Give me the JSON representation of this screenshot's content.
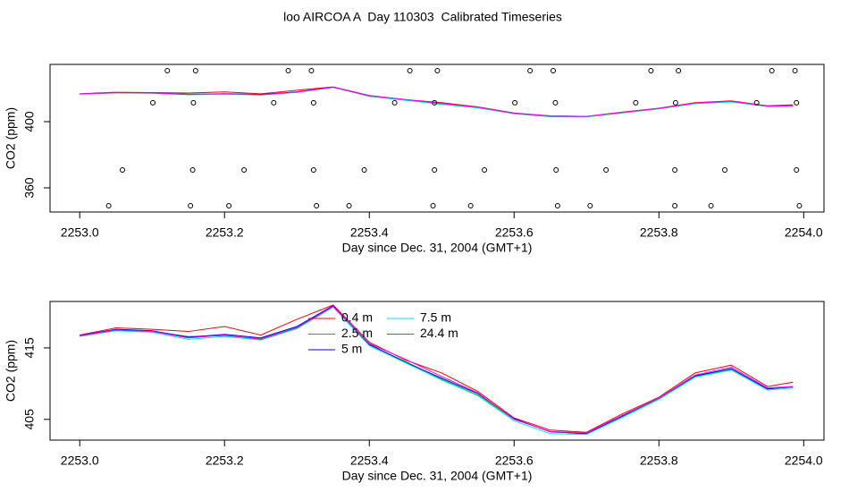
{
  "title": "loo AIRCOA A  Day 110303  Calibrated Timeseries",
  "chart_data": [
    {
      "type": "line",
      "xlabel": "Day since Dec. 31, 2004 (GMT+1)",
      "ylabel": "CO2 (ppm)",
      "xlim": [
        2252.959,
        2254.028
      ],
      "ylim": [
        345.4,
        434.6
      ],
      "xticks": [
        {
          "value": 2253,
          "label": "2253.0"
        },
        2253.2,
        2253.4,
        2253.6,
        2253.8,
        {
          "value": 2254,
          "label": "2254.0"
        }
      ],
      "yticks": [
        360,
        400
      ],
      "legend": false,
      "x": [
        2253,
        2253.05,
        2253.1,
        2253.15,
        2253.2,
        2253.25,
        2253.3,
        2253.35,
        2253.4,
        2253.45,
        2253.5,
        2253.55,
        2253.6,
        2253.65,
        2253.7,
        2253.75,
        2253.8,
        2253.85,
        2253.9,
        2253.95,
        2253.985
      ],
      "series": [
        {
          "name": "0.4 m",
          "color": "#ff0000",
          "values": [
            416.8,
            417.8,
            417.6,
            417.3,
            418.0,
            416.8,
            419.0,
            421.0,
            415.8,
            413.3,
            411.5,
            408.9,
            405.2,
            403.5,
            403.2,
            405.8,
            408.1,
            411.5,
            412.6,
            409.6,
            410.2
          ]
        },
        {
          "name": "2.5 m",
          "color": "#00cd00",
          "values": [
            416.7,
            417.5,
            417.3,
            416.6,
            416.7,
            416.3,
            417.9,
            420.8,
            415.4,
            413.1,
            410.6,
            408.4,
            405.0,
            403.3,
            403.1,
            405.4,
            407.9,
            411.0,
            412.0,
            409.3,
            409.5
          ]
        },
        {
          "name": "5 m",
          "color": "#0000ff",
          "values": [
            416.75,
            417.6,
            417.4,
            416.5,
            416.9,
            416.4,
            418.0,
            420.9,
            415.5,
            413.0,
            410.75,
            408.6,
            405.1,
            403.25,
            403.0,
            405.5,
            408.0,
            411.1,
            412.1,
            409.25,
            409.6
          ]
        },
        {
          "name": "7.5 m",
          "color": "#00e5e5",
          "values": [
            416.6,
            417.4,
            417.2,
            416.2,
            416.6,
            416.1,
            417.7,
            420.7,
            415.3,
            412.9,
            410.5,
            408.3,
            404.8,
            403.0,
            402.9,
            405.3,
            407.8,
            410.9,
            411.9,
            409.1,
            409.4
          ]
        },
        {
          "name": "24.4 m",
          "color": "#ff00ff",
          "values": [
            416.7,
            417.5,
            417.3,
            416.4,
            416.8,
            416.2,
            417.8,
            420.8,
            415.6,
            413.4,
            411.0,
            408.7,
            405.0,
            403.3,
            403.1,
            405.6,
            408.0,
            411.2,
            412.3,
            409.4,
            409.6
          ]
        }
      ],
      "points": {
        "color": "#000000",
        "x": [
          2253.121,
          2253.16,
          2253.288,
          2253.32,
          2253.456,
          2253.494,
          2253.622,
          2253.654,
          2253.789,
          2253.827,
          2253.956,
          2253.988,
          2253.101,
          2253.157,
          2253.268,
          2253.323,
          2253.435,
          2253.49,
          2253.601,
          2253.657,
          2253.768,
          2253.823,
          2253.935,
          2253.99,
          2253.059,
          2253.156,
          2253.227,
          2253.323,
          2253.393,
          2253.49,
          2253.559,
          2253.658,
          2253.727,
          2253.822,
          2253.891,
          2253.99,
          2253.04,
          2253.153,
          2253.206,
          2253.327,
          2253.372,
          2253.488,
          2253.54,
          2253.66,
          2253.705,
          2253.822,
          2253.872,
          2253.994
        ],
        "y": [
          430.8,
          430.8,
          430.8,
          430.8,
          430.8,
          430.8,
          430.8,
          430.8,
          430.8,
          430.8,
          430.8,
          430.8,
          411.4,
          411.4,
          411.4,
          411.4,
          411.4,
          411.4,
          411.4,
          411.4,
          411.4,
          411.4,
          411.4,
          411.4,
          370.8,
          370.8,
          370.8,
          370.8,
          370.8,
          370.8,
          370.8,
          370.8,
          370.8,
          370.8,
          370.8,
          370.8,
          349.2,
          349.2,
          349.2,
          349.2,
          349.2,
          349.2,
          349.2,
          349.2,
          349.2,
          349.2,
          349.2,
          349.2
        ]
      }
    },
    {
      "type": "line",
      "xlabel": "Day since Dec. 31, 2004 (GMT+1)",
      "ylabel": "CO2 (ppm)",
      "xlim": [
        2252.959,
        2254.028
      ],
      "ylim": [
        402.1,
        421.5
      ],
      "xticks": [
        {
          "value": 2253,
          "label": "2253.0"
        },
        2253.2,
        2253.4,
        2253.6,
        2253.8,
        {
          "value": 2254,
          "label": "2254.0"
        }
      ],
      "yticks": [
        405,
        415
      ],
      "legend": true,
      "x": [
        2253,
        2253.05,
        2253.1,
        2253.15,
        2253.2,
        2253.25,
        2253.3,
        2253.35,
        2253.4,
        2253.45,
        2253.5,
        2253.55,
        2253.6,
        2253.65,
        2253.7,
        2253.75,
        2253.8,
        2253.85,
        2253.9,
        2253.95,
        2253.985
      ],
      "series": [
        {
          "name": "0.4 m",
          "color": "#ff0000",
          "values": [
            416.8,
            417.8,
            417.6,
            417.3,
            418.0,
            416.8,
            419.0,
            421.0,
            415.8,
            413.3,
            411.5,
            408.9,
            405.2,
            403.5,
            403.2,
            405.8,
            408.1,
            411.5,
            412.6,
            409.6,
            410.2
          ]
        },
        {
          "name": "2.5 m",
          "color": "#00cd00",
          "values": [
            416.7,
            417.5,
            417.3,
            416.6,
            416.7,
            416.3,
            417.9,
            420.8,
            415.4,
            413.1,
            410.6,
            408.4,
            405.0,
            403.3,
            403.1,
            405.4,
            407.9,
            411.0,
            412.0,
            409.3,
            409.5
          ]
        },
        {
          "name": "5 m",
          "color": "#0000ff",
          "values": [
            416.75,
            417.6,
            417.4,
            416.5,
            416.9,
            416.4,
            418.0,
            420.9,
            415.5,
            413.0,
            410.75,
            408.6,
            405.1,
            403.25,
            403.0,
            405.5,
            408.0,
            411.1,
            412.1,
            409.25,
            409.6
          ]
        },
        {
          "name": "7.5 m",
          "color": "#00e5e5",
          "values": [
            416.6,
            417.4,
            417.2,
            416.2,
            416.6,
            416.1,
            417.7,
            420.7,
            415.3,
            412.9,
            410.5,
            408.3,
            404.8,
            403.0,
            402.9,
            405.3,
            407.8,
            410.9,
            411.9,
            409.1,
            409.4
          ]
        },
        {
          "name": "24.4 m",
          "color": "#ff00ff",
          "values": [
            416.7,
            417.5,
            417.3,
            416.4,
            416.8,
            416.2,
            417.8,
            420.8,
            415.6,
            413.4,
            411.0,
            408.7,
            405.0,
            403.3,
            403.1,
            405.6,
            408.0,
            411.2,
            412.3,
            409.4,
            409.6
          ]
        }
      ]
    }
  ]
}
